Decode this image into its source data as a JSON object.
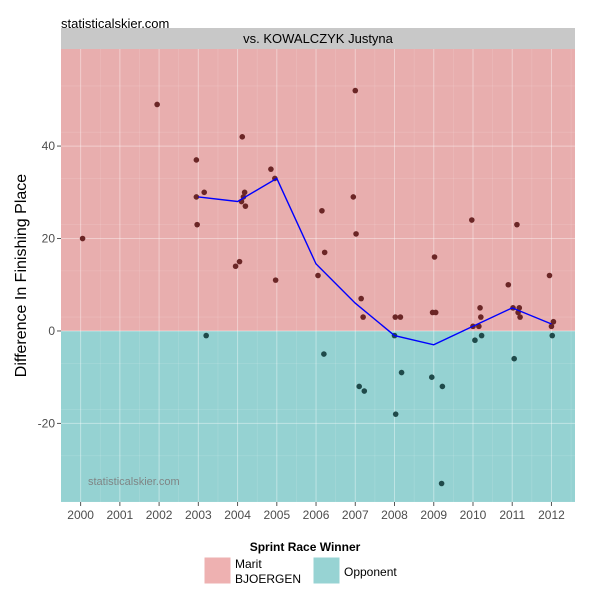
{
  "site_label": "statisticalskier.com",
  "chart_data": {
    "type": "scatter",
    "title": "vs. KOWALCZYK Justyna",
    "watermark": "statisticalskier.com",
    "xlabel": "",
    "ylabel": "Difference In Finishing Place",
    "xlim": [
      1999.5,
      2012.6
    ],
    "ylim": [
      -37,
      61
    ],
    "x_ticks": [
      2000,
      2001,
      2002,
      2003,
      2004,
      2005,
      2006,
      2007,
      2008,
      2009,
      2010,
      2011,
      2012
    ],
    "y_ticks": [
      -20,
      0,
      20,
      40
    ],
    "grid": true,
    "legend": {
      "title": "Sprint Race Winner",
      "position": "bottom",
      "entries": [
        {
          "label_lines": [
            "Marit",
            "BJOERGEN"
          ],
          "color": "#eeb1b1"
        },
        {
          "label_lines": [
            "Opponent"
          ],
          "color": "#97d3d3"
        }
      ]
    },
    "colors": {
      "positive_region": "#e8aeae",
      "negative_region": "#95d2d2",
      "panel_strip": "#c8c8c8",
      "point_positive": "#6b2626",
      "point_negative": "#1f4a4a",
      "trend_line": "#0000ff"
    },
    "points": [
      {
        "x": 2000.05,
        "y": 20
      },
      {
        "x": 2001.95,
        "y": 49
      },
      {
        "x": 2002.95,
        "y": 37
      },
      {
        "x": 2002.95,
        "y": 29
      },
      {
        "x": 2002.97,
        "y": 23
      },
      {
        "x": 2003.15,
        "y": 30
      },
      {
        "x": 2003.2,
        "y": -1
      },
      {
        "x": 2003.95,
        "y": 14
      },
      {
        "x": 2004.05,
        "y": 15
      },
      {
        "x": 2004.1,
        "y": 28
      },
      {
        "x": 2004.12,
        "y": 42
      },
      {
        "x": 2004.15,
        "y": 29
      },
      {
        "x": 2004.18,
        "y": 30
      },
      {
        "x": 2004.2,
        "y": 27
      },
      {
        "x": 2004.85,
        "y": 35
      },
      {
        "x": 2004.95,
        "y": 33
      },
      {
        "x": 2004.97,
        "y": 11
      },
      {
        "x": 2006.05,
        "y": 12
      },
      {
        "x": 2006.15,
        "y": 26
      },
      {
        "x": 2006.2,
        "y": -5
      },
      {
        "x": 2006.22,
        "y": 17
      },
      {
        "x": 2006.95,
        "y": 29
      },
      {
        "x": 2007.0,
        "y": 52
      },
      {
        "x": 2007.02,
        "y": 21
      },
      {
        "x": 2007.1,
        "y": -12
      },
      {
        "x": 2007.15,
        "y": 7
      },
      {
        "x": 2007.2,
        "y": 3
      },
      {
        "x": 2007.23,
        "y": -13
      },
      {
        "x": 2008.0,
        "y": -1
      },
      {
        "x": 2008.02,
        "y": 3
      },
      {
        "x": 2008.03,
        "y": -18
      },
      {
        "x": 2008.15,
        "y": 3
      },
      {
        "x": 2008.18,
        "y": -9
      },
      {
        "x": 2008.95,
        "y": -10
      },
      {
        "x": 2008.97,
        "y": 4
      },
      {
        "x": 2009.02,
        "y": 16
      },
      {
        "x": 2009.05,
        "y": 4
      },
      {
        "x": 2009.2,
        "y": -33
      },
      {
        "x": 2009.22,
        "y": -12
      },
      {
        "x": 2009.97,
        "y": 24
      },
      {
        "x": 2010.0,
        "y": 1
      },
      {
        "x": 2010.05,
        "y": -2
      },
      {
        "x": 2010.15,
        "y": 1
      },
      {
        "x": 2010.18,
        "y": 5
      },
      {
        "x": 2010.2,
        "y": 3
      },
      {
        "x": 2010.22,
        "y": -1
      },
      {
        "x": 2010.9,
        "y": 10
      },
      {
        "x": 2011.02,
        "y": 5
      },
      {
        "x": 2011.05,
        "y": -6
      },
      {
        "x": 2011.12,
        "y": 23
      },
      {
        "x": 2011.15,
        "y": 4
      },
      {
        "x": 2011.18,
        "y": 5
      },
      {
        "x": 2011.2,
        "y": 3
      },
      {
        "x": 2011.95,
        "y": 12
      },
      {
        "x": 2012.0,
        "y": 1
      },
      {
        "x": 2012.02,
        "y": -1
      },
      {
        "x": 2012.05,
        "y": 2
      }
    ],
    "trend": [
      {
        "x": 2003.0,
        "y": 29
      },
      {
        "x": 2004.0,
        "y": 28
      },
      {
        "x": 2005.0,
        "y": 33
      },
      {
        "x": 2006.0,
        "y": 14.5
      },
      {
        "x": 2007.0,
        "y": 6
      },
      {
        "x": 2008.0,
        "y": -1
      },
      {
        "x": 2009.0,
        "y": -3
      },
      {
        "x": 2010.0,
        "y": 1
      },
      {
        "x": 2011.0,
        "y": 5
      },
      {
        "x": 2012.0,
        "y": 1.5
      }
    ]
  }
}
